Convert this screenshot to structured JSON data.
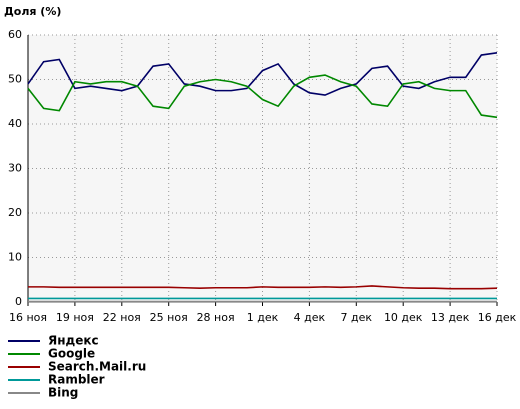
{
  "chart_data": {
    "type": "line",
    "title": "Доля (%)",
    "categories": [
      "16 ноя",
      null,
      null,
      "19 ноя",
      null,
      null,
      "22 ноя",
      null,
      null,
      "25 ноя",
      null,
      null,
      "28 ноя",
      null,
      null,
      "1 дек",
      null,
      null,
      "4 дек",
      null,
      null,
      "7 дек",
      null,
      null,
      "10 дек",
      null,
      null,
      "13 дек",
      null,
      null,
      "16 дек"
    ],
    "series": [
      {
        "name": "Яндекс",
        "color": "#000066",
        "values": [
          49,
          54,
          54.5,
          48,
          48.5,
          48,
          47.5,
          48.5,
          53,
          53.5,
          49,
          48.5,
          47.5,
          47.5,
          48,
          52,
          53.5,
          49,
          47,
          46.5,
          48,
          49,
          52.5,
          53,
          48.5,
          48,
          49.5,
          50.5,
          50.5,
          55.5,
          56
        ]
      },
      {
        "name": "Google",
        "color": "#008800",
        "values": [
          48,
          43.5,
          43,
          49.5,
          49,
          49.5,
          49.5,
          48.5,
          44,
          43.5,
          48.5,
          49.5,
          50,
          49.5,
          48.5,
          45.5,
          44,
          48.5,
          50.5,
          51,
          49.5,
          48.5,
          44.5,
          44,
          49,
          49.5,
          48,
          47.5,
          47.5,
          42,
          41.5
        ]
      },
      {
        "name": "Search.Mail.ru",
        "color": "#990000",
        "values": [
          3.4,
          3.4,
          3.3,
          3.3,
          3.3,
          3.3,
          3.3,
          3.3,
          3.3,
          3.3,
          3.2,
          3.1,
          3.2,
          3.2,
          3.2,
          3.4,
          3.3,
          3.3,
          3.3,
          3.4,
          3.3,
          3.4,
          3.6,
          3.4,
          3.2,
          3.1,
          3.1,
          3.0,
          3.0,
          3.0,
          3.1
        ]
      },
      {
        "name": "Rambler",
        "color": "#009999",
        "values": [
          0.8,
          0.8,
          0.8,
          0.8,
          0.8,
          0.8,
          0.8,
          0.8,
          0.8,
          0.8,
          0.8,
          0.8,
          0.8,
          0.8,
          0.8,
          0.8,
          0.8,
          0.8,
          0.8,
          0.8,
          0.8,
          0.8,
          0.8,
          0.8,
          0.8,
          0.8,
          0.8,
          0.8,
          0.8,
          0.8,
          0.8
        ]
      },
      {
        "name": "Bing",
        "color": "#888888",
        "values": [
          0.1,
          0.1,
          0.1,
          0.1,
          0.1,
          0.1,
          0.1,
          0.1,
          0.1,
          0.1,
          0.1,
          0.1,
          0.1,
          0.1,
          0.1,
          0.1,
          0.1,
          0.1,
          0.1,
          0.1,
          0.1,
          0.1,
          0.1,
          0.1,
          0.1,
          0.1,
          0.1,
          0.1,
          0.1,
          0.1,
          0.1
        ]
      }
    ],
    "ylim": [
      0,
      60
    ],
    "yticks": [
      0,
      10,
      20,
      30,
      40,
      50,
      60
    ],
    "grid": true
  }
}
